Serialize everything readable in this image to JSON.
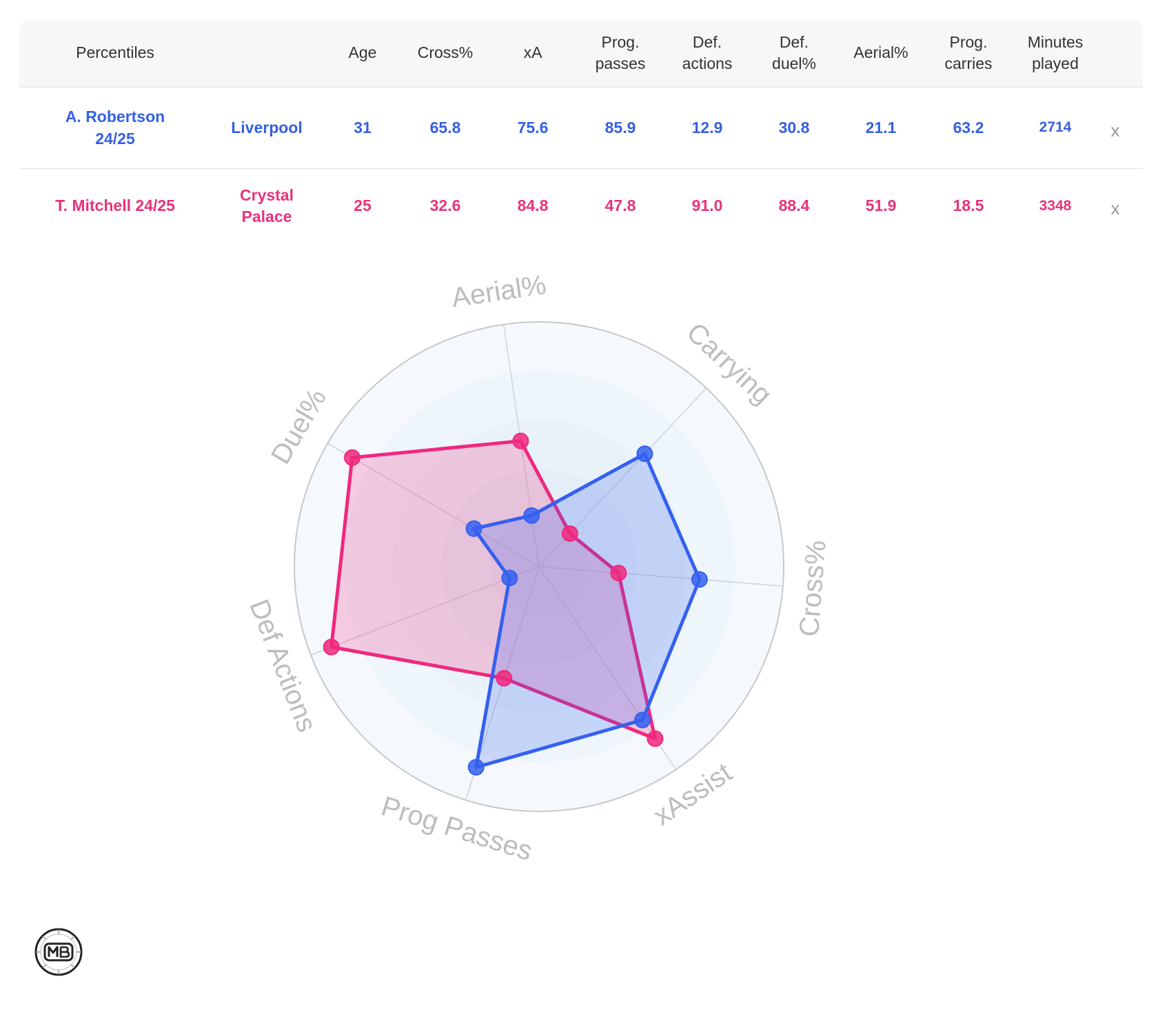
{
  "table": {
    "headers": {
      "percentiles": "Percentiles",
      "age": "Age",
      "cross": "Cross%",
      "xa": "xA",
      "prog_passes": "Prog.\npasses",
      "def_actions": "Def.\nactions",
      "def_duel": "Def.\nduel%",
      "aerial": "Aerial%",
      "prog_carries": "Prog.\ncarries",
      "minutes": "Minutes\nplayed"
    },
    "rows": [
      {
        "player": "A. Robertson\n24/25",
        "team": "Liverpool",
        "age": "31",
        "cross": "65.8",
        "xa": "75.6",
        "prog_passes": "85.9",
        "def_actions": "12.9",
        "def_duel": "30.8",
        "aerial": "21.1",
        "prog_carries": "63.2",
        "minutes": "2714",
        "remove": "x"
      },
      {
        "player": "T. Mitchell 24/25",
        "team": "Crystal\nPalace",
        "age": "25",
        "cross": "32.6",
        "xa": "84.8",
        "prog_passes": "47.8",
        "def_actions": "91.0",
        "def_duel": "88.4",
        "aerial": "51.9",
        "prog_carries": "18.5",
        "minutes": "3348",
        "remove": "x"
      }
    ]
  },
  "chart_data": {
    "type": "radar",
    "axes": [
      "Aerial%",
      "Carrying",
      "Cross%",
      "xAssist",
      "Prog Passes",
      "Def Actions",
      "Duel%"
    ],
    "range": [
      0,
      100
    ],
    "series": [
      {
        "name": "A. Robertson 24/25",
        "color": "#3560f0",
        "values": [
          21.1,
          63.2,
          65.8,
          75.6,
          85.9,
          12.9,
          30.8
        ]
      },
      {
        "name": "T. Mitchell 24/25",
        "color": "#f0287d",
        "values": [
          51.9,
          18.5,
          32.6,
          84.8,
          47.8,
          91.0,
          88.4
        ]
      }
    ]
  }
}
